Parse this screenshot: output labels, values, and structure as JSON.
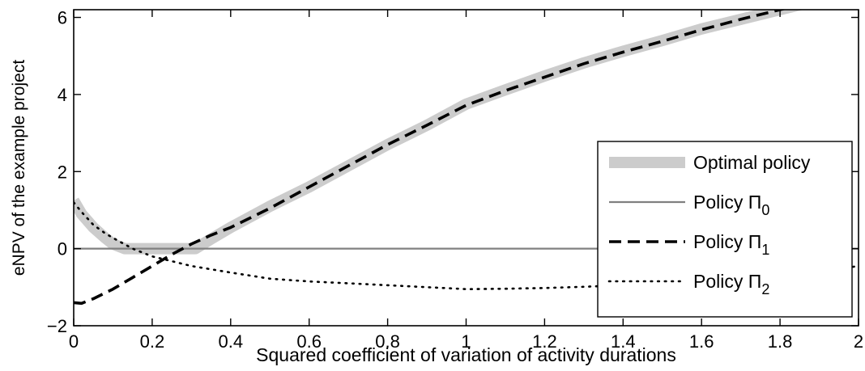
{
  "chart_data": {
    "type": "line",
    "title": "",
    "xlabel": "Squared coefficient of variation of activity durations",
    "ylabel": "eNPV of the example project",
    "xlim": [
      0,
      2
    ],
    "ylim": [
      -2,
      6.2
    ],
    "xticks": [
      0,
      0.2,
      0.4,
      0.6,
      0.8,
      1,
      1.2,
      1.4,
      1.6,
      1.8,
      2
    ],
    "xtick_labels": [
      "0",
      "0.2",
      "0.4",
      "0.6",
      "0.8",
      "1",
      "1.2",
      "1.4",
      "1.6",
      "1.8",
      "2"
    ],
    "yticks": [
      -2,
      0,
      2,
      4,
      6
    ],
    "ytick_labels": [
      "−2",
      "0",
      "2",
      "4",
      "6"
    ],
    "grid": false,
    "legend_position": "lower-right",
    "series": [
      {
        "name": "Optimal policy",
        "style": "thick-gray",
        "color": "#cccccc",
        "x": [
          0,
          0.02,
          0.05,
          0.08,
          0.1,
          0.13,
          0.15,
          0.2,
          0.25,
          0.3,
          0.31,
          0.35,
          0.4,
          0.5,
          0.6,
          0.7,
          0.8,
          0.9,
          1.0,
          1.1,
          1.2,
          1.3,
          1.4,
          1.5,
          1.6,
          1.7,
          1.8,
          1.9,
          2.0
        ],
        "y": [
          1.25,
          0.9,
          0.55,
          0.28,
          0.12,
          0.0,
          0.0,
          0.0,
          0.0,
          0.0,
          0.0,
          0.25,
          0.55,
          1.1,
          1.6,
          2.15,
          2.7,
          3.2,
          3.75,
          4.12,
          4.48,
          4.82,
          5.12,
          5.4,
          5.7,
          5.95,
          6.2,
          6.45,
          6.7
        ]
      },
      {
        "name": "Policy Π0",
        "label_main": "Policy Π",
        "label_sub": "0",
        "style": "solid",
        "color": "#808080",
        "x": [
          0,
          2
        ],
        "y": [
          0,
          0
        ]
      },
      {
        "name": "Policy Π1",
        "label_main": "Policy Π",
        "label_sub": "1",
        "style": "dashed",
        "color": "#000000",
        "x": [
          0,
          0.02,
          0.05,
          0.1,
          0.15,
          0.2,
          0.25,
          0.3,
          0.35,
          0.4,
          0.5,
          0.6,
          0.7,
          0.8,
          0.9,
          1.0,
          1.1,
          1.2,
          1.3,
          1.4,
          1.5,
          1.6,
          1.7,
          1.8,
          1.9,
          2.0
        ],
        "y": [
          -1.4,
          -1.42,
          -1.3,
          -1.05,
          -0.75,
          -0.45,
          -0.15,
          0.12,
          0.35,
          0.55,
          1.05,
          1.6,
          2.15,
          2.7,
          3.2,
          3.72,
          4.1,
          4.45,
          4.8,
          5.1,
          5.38,
          5.68,
          5.95,
          6.2,
          6.45,
          6.7
        ]
      },
      {
        "name": "Policy Π2",
        "label_main": "Policy Π",
        "label_sub": "2",
        "style": "dotted",
        "color": "#000000",
        "x": [
          0,
          0.02,
          0.05,
          0.08,
          0.1,
          0.15,
          0.2,
          0.3,
          0.4,
          0.5,
          0.6,
          0.7,
          0.8,
          0.9,
          1.0,
          1.1,
          1.2,
          1.3,
          1.4,
          1.5,
          1.6,
          1.7,
          1.8,
          1.9,
          2.0
        ],
        "y": [
          1.2,
          0.95,
          0.62,
          0.4,
          0.28,
          0.0,
          -0.2,
          -0.45,
          -0.62,
          -0.78,
          -0.85,
          -0.9,
          -0.95,
          -1.0,
          -1.05,
          -1.04,
          -1.02,
          -0.99,
          -0.95,
          -0.9,
          -0.85,
          -0.78,
          -0.7,
          -0.6,
          -0.45
        ]
      }
    ]
  }
}
